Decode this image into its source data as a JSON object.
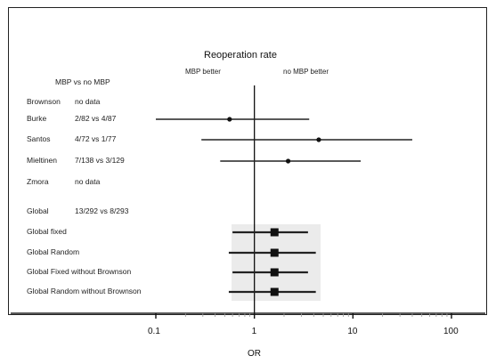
{
  "chart_data": {
    "type": "forest",
    "title": "Reoperation rate",
    "left_annotation": "MBP better",
    "right_annotation": "no MBP better",
    "column_header": "MBP vs no MBP",
    "xlabel": "OR",
    "x_scale": "log",
    "xlim": [
      0.1,
      100
    ],
    "reference_line": 1,
    "x_ticks": [
      {
        "value": 0.1,
        "label": "0.1"
      },
      {
        "value": 1,
        "label": "1"
      },
      {
        "value": 10,
        "label": "10"
      },
      {
        "value": 100,
        "label": "100"
      }
    ],
    "rows": [
      {
        "label": "Brownson",
        "value": "no data",
        "or": null,
        "ci": null,
        "marker": "none"
      },
      {
        "label": "Burke",
        "value": "2/82 vs 4/87",
        "or": 0.56,
        "ci": [
          0.1,
          3.6
        ],
        "marker": "point"
      },
      {
        "label": "Santos",
        "value": "4/72 vs 1/77",
        "or": 4.5,
        "ci": [
          0.29,
          40
        ],
        "marker": "point"
      },
      {
        "label": "Mieltinen",
        "value": "7/138 vs 3/129",
        "or": 2.2,
        "ci": [
          0.45,
          12
        ],
        "marker": "point"
      },
      {
        "label": "Zmora",
        "value": "no data",
        "or": null,
        "ci": null,
        "marker": "none"
      },
      {
        "label": "Global",
        "value": "13/292 vs 8/293",
        "or": null,
        "ci": null,
        "marker": "none"
      },
      {
        "label": "Global fixed",
        "value": "",
        "or": 1.6,
        "ci": [
          0.6,
          3.5
        ],
        "marker": "square"
      },
      {
        "label": "Global Random",
        "value": "",
        "or": 1.6,
        "ci": [
          0.55,
          4.2
        ],
        "marker": "square"
      },
      {
        "label": "Global Fixed without Brownson",
        "value": "",
        "or": 1.6,
        "ci": [
          0.6,
          3.5
        ],
        "marker": "square"
      },
      {
        "label": "Global Random without Brownson",
        "value": "",
        "or": 1.6,
        "ci": [
          0.55,
          4.2
        ],
        "marker": "square"
      }
    ]
  }
}
